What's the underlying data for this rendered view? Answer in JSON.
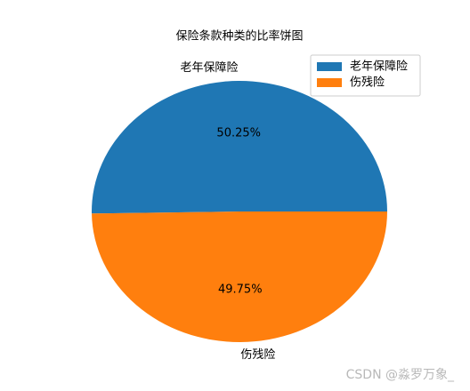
{
  "chart_data": {
    "type": "pie",
    "title": "保险条款种类的比率饼图",
    "categories": [
      "老年保障险",
      "伤残险"
    ],
    "values": [
      50.25,
      49.75
    ],
    "value_labels": [
      "50.25%",
      "49.75%"
    ],
    "colors": [
      "#1f77b4",
      "#ff7f0e"
    ],
    "legend": "upper right"
  },
  "watermark": "CSDN @淼罗万象_"
}
